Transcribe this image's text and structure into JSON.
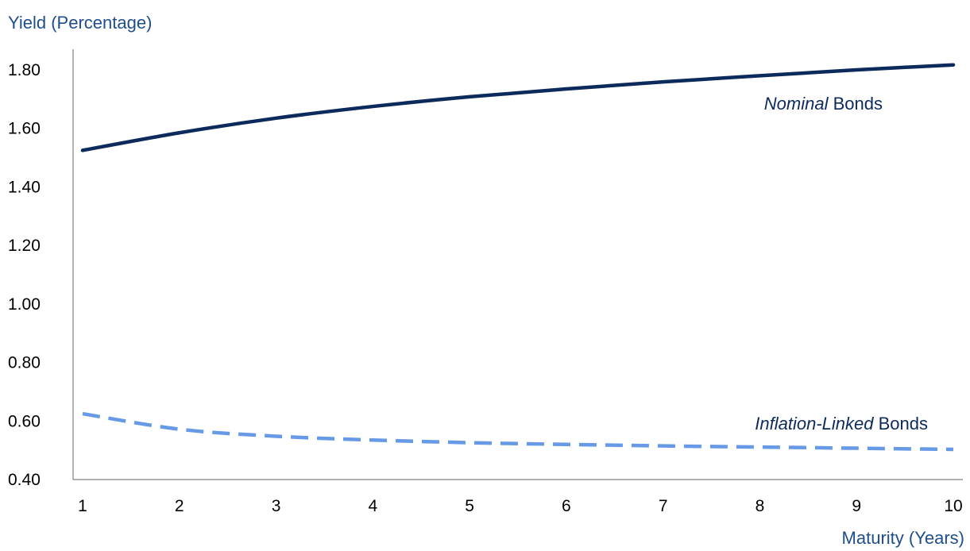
{
  "chart_data": {
    "type": "line",
    "title": "",
    "ylabel": "Yield (Percentage)",
    "xlabel": "Maturity (Years)",
    "x": [
      1,
      2,
      3,
      4,
      5,
      6,
      7,
      8,
      9,
      10
    ],
    "x_ticks": [
      "1",
      "2",
      "3",
      "4",
      "5",
      "6",
      "7",
      "8",
      "9",
      "10"
    ],
    "ylim": [
      0.4,
      1.85
    ],
    "y_ticks": [
      0.4,
      0.6,
      0.8,
      1.0,
      1.2,
      1.4,
      1.6,
      1.8
    ],
    "y_tick_labels": [
      "0.40",
      "0.60",
      "0.80",
      "1.00",
      "1.20",
      "1.40",
      "1.60",
      "1.80"
    ],
    "grid": false,
    "legend": "none",
    "series": [
      {
        "label_emphasis": "Nominal",
        "label_rest": " Bonds",
        "color": "#0d2a5c",
        "style": "solid",
        "values": [
          1.525,
          1.585,
          1.635,
          1.675,
          1.708,
          1.735,
          1.759,
          1.78,
          1.8,
          1.817
        ]
      },
      {
        "label_emphasis": "Inflation-Linked",
        "label_rest": " Bonds",
        "color": "#6699e6",
        "style": "dashed",
        "values": [
          0.625,
          0.572,
          0.548,
          0.535,
          0.526,
          0.52,
          0.515,
          0.511,
          0.507,
          0.503
        ]
      }
    ],
    "axis_title_color": "#1f4e8c"
  }
}
